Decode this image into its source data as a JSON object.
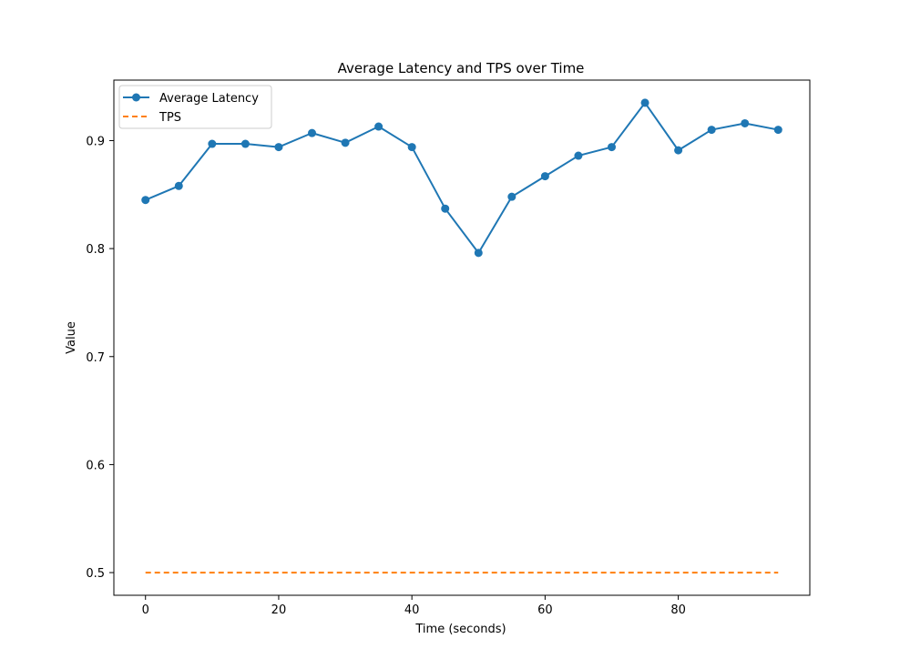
{
  "chart_data": {
    "type": "line",
    "title": "Average Latency and TPS over Time",
    "xlabel": "Time (seconds)",
    "ylabel": "Value",
    "xlim": [
      -4.75,
      99.75
    ],
    "ylim": [
      0.479,
      0.956
    ],
    "xticks": [
      0,
      20,
      40,
      60,
      80
    ],
    "yticks": [
      0.5,
      0.6,
      0.7,
      0.8,
      0.9
    ],
    "xtick_labels": [
      "0",
      "20",
      "40",
      "60",
      "80"
    ],
    "ytick_labels": [
      "0.5",
      "0.6",
      "0.7",
      "0.8",
      "0.9"
    ],
    "x": [
      0,
      5,
      10,
      15,
      20,
      25,
      30,
      35,
      40,
      45,
      50,
      55,
      60,
      65,
      70,
      75,
      80,
      85,
      90,
      95
    ],
    "series": [
      {
        "name": "Average Latency",
        "values": [
          0.845,
          0.858,
          0.897,
          0.897,
          0.894,
          0.907,
          0.898,
          0.913,
          0.894,
          0.837,
          0.796,
          0.848,
          0.867,
          0.886,
          0.894,
          0.935,
          0.891,
          0.91,
          0.916,
          0.91
        ],
        "color": "#1f77b4",
        "style": "solid",
        "marker": "circle"
      },
      {
        "name": "TPS",
        "values": [
          0.5,
          0.5,
          0.5,
          0.5,
          0.5,
          0.5,
          0.5,
          0.5,
          0.5,
          0.5,
          0.5,
          0.5,
          0.5,
          0.5,
          0.5,
          0.5,
          0.5,
          0.5,
          0.5,
          0.5
        ],
        "color": "#ff7f0e",
        "style": "dashed",
        "marker": "none"
      }
    ],
    "grid": false,
    "legend_position": "top-left"
  }
}
